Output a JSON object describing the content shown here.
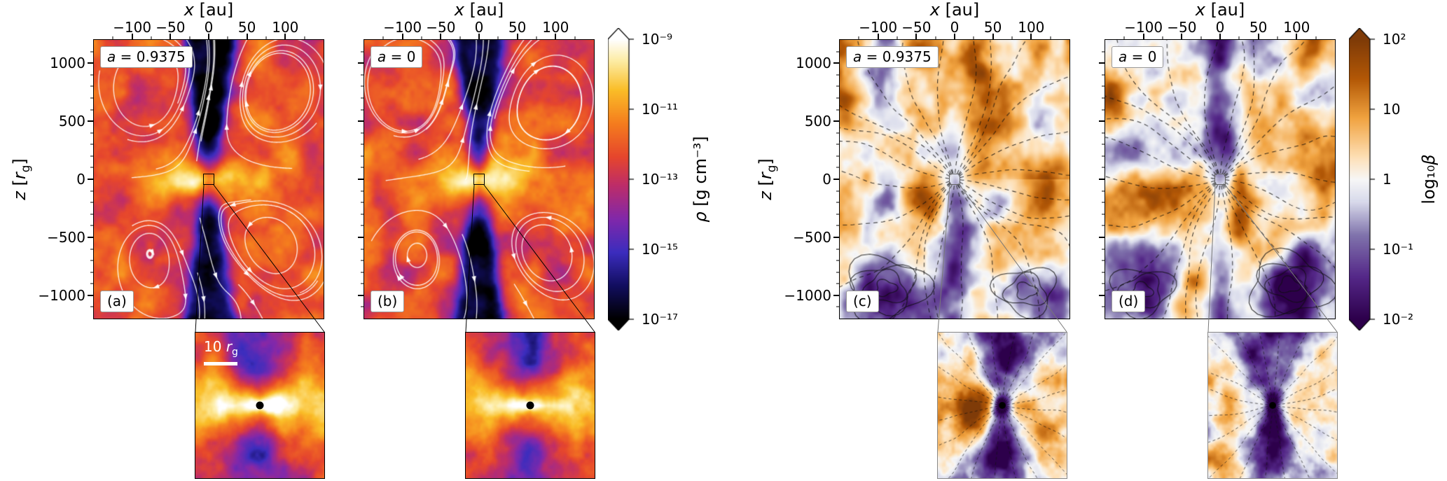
{
  "axes": {
    "x": {
      "var": "x",
      "unit": " [au]",
      "range": [
        -150,
        150
      ],
      "minor_step": 25,
      "major": [
        {
          "v": -100,
          "label": "−100"
        },
        {
          "v": -50,
          "label": "−50"
        },
        {
          "v": 0,
          "label": "0"
        },
        {
          "v": 50,
          "label": "50"
        },
        {
          "v": 100,
          "label": "100"
        }
      ]
    },
    "z": {
      "pre": "z",
      "bracket": " [",
      "rvar": "r",
      "sub": "g",
      "close": "]",
      "range": [
        -1200,
        1200
      ],
      "minor_step": 100,
      "major": [
        {
          "v": 1000,
          "label": "1000"
        },
        {
          "v": 500,
          "label": "500"
        },
        {
          "v": 0,
          "label": "0"
        },
        {
          "v": -500,
          "label": "−500"
        },
        {
          "v": -1000,
          "label": "−1000"
        }
      ]
    }
  },
  "panels": [
    {
      "tag": "(a)",
      "spin_var": "a",
      "spin_val": " = 0.9375"
    },
    {
      "tag": "(b)",
      "spin_var": "a",
      "spin_val": " = 0"
    },
    {
      "tag": "(c)",
      "spin_var": "a",
      "spin_val": " = 0.9375"
    },
    {
      "tag": "(d)",
      "spin_var": "a",
      "spin_val": " = 0"
    }
  ],
  "colorbars": {
    "density": {
      "var": "ρ",
      "unit": " [g cm⁻³]",
      "ticks": [
        "10⁻⁹",
        "10⁻¹¹",
        "10⁻¹³",
        "10⁻¹⁵",
        "10⁻¹⁷"
      ]
    },
    "beta": {
      "pre": "log₁₀",
      "var": "β",
      "ticks": [
        "10²",
        "10",
        "1",
        "10⁻¹",
        "10⁻²"
      ]
    }
  },
  "inset_scale": {
    "num": "10 ",
    "rvar": "r",
    "sub": "g"
  },
  "chart_data": [
    {
      "type": "heatmap",
      "id": "density-slices",
      "panels": [
        {
          "tag": "(a)",
          "annotation": "a = 0.9375"
        },
        {
          "tag": "(b)",
          "annotation": "a = 0"
        }
      ],
      "xlabel": "x [au]",
      "ylabel": "z [r_g]",
      "x_ticks": [
        -100,
        -50,
        0,
        50,
        100
      ],
      "x_range_au": [
        -150,
        150
      ],
      "z_ticks": [
        1000,
        500,
        0,
        -500,
        -1000
      ],
      "z_range_rg": [
        -1200,
        1200
      ],
      "colorbar": {
        "label": "ρ [g cm⁻³]",
        "scale": "log",
        "extend": "both",
        "tick_values": [
          1e-09,
          1e-11,
          1e-13,
          1e-15,
          1e-17
        ],
        "vmin": 1e-17,
        "vmax": 1e-09,
        "colormap": "black → blue-violet → magenta-red → orange → yellow → white"
      },
      "features": [
        "turbulent orange-red high-density gas at large radii",
        "dark low-density polar funnel along the z-axis",
        "bright dense equatorial region at the centre",
        "white velocity streamlines with arrowheads showing large convective eddies",
        "black zoom box at the origin connected by lines to the inset below"
      ],
      "insets": [
        {
          "parent": "(a)",
          "scale_bar_label": "10 r_g",
          "content": "zoom of central region: bright dense equatorial disc, dark polar cones, black hole as black dot"
        },
        {
          "parent": "(b)",
          "content": "zoom of central region: bright dense equatorial disc, dark polar cones, black hole as black dot"
        }
      ]
    },
    {
      "type": "heatmap",
      "id": "plasma-beta-slices",
      "panels": [
        {
          "tag": "(c)",
          "annotation": "a = 0.9375"
        },
        {
          "tag": "(d)",
          "annotation": "a = 0"
        }
      ],
      "xlabel": "x [au]",
      "ylabel": "z [r_g]",
      "x_ticks": [
        -100,
        -50,
        0,
        50,
        100
      ],
      "x_range_au": [
        -150,
        150
      ],
      "z_ticks": [
        1000,
        500,
        0,
        -500,
        -1000
      ],
      "z_range_rg": [
        -1200,
        1200
      ],
      "colorbar": {
        "label": "log₁₀β",
        "extend": "both",
        "tick_labels": [
          "10²",
          "10",
          "1",
          "10⁻¹",
          "10⁻²"
        ],
        "colormap": "dark purple → lavender → white → orange → dark brown-orange"
      },
      "features": [
        "orange regions of high plasma β (gas-pressure dominated)",
        "purple magnetically dominated polar column and lower lobes",
        "dashed black contours fanning out from the centre (poloidal field lines)",
        "solid closed contours in the lower corners",
        "grey zoom box at the origin connected by lines to the inset below"
      ],
      "insets": [
        {
          "parent": "(c)",
          "content": "zoom of central region: purple magnetised fan around the black hole, dashed contours, orange patches on the left"
        },
        {
          "parent": "(d)",
          "content": "zoom of central region: purple magnetised fan around the black hole, dashed contours"
        }
      ]
    }
  ]
}
